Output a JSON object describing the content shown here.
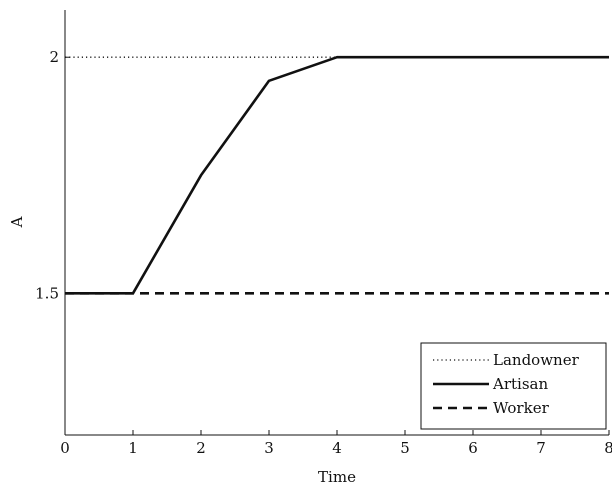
{
  "chart_data": {
    "type": "line",
    "xlabel": "Time",
    "ylabel": "A",
    "xlim": [
      0,
      8
    ],
    "ylim": [
      1.2,
      2.1
    ],
    "xticks": [
      "0",
      "1",
      "2",
      "3",
      "4",
      "5",
      "6",
      "7",
      "8"
    ],
    "yticks": [
      "1.5",
      "2"
    ],
    "grid": false,
    "legend_position": "bottom-right",
    "series": [
      {
        "name": "Landowner",
        "line_style": "dotted",
        "x": [
          0,
          8
        ],
        "y": [
          2,
          2
        ]
      },
      {
        "name": "Artisan",
        "line_style": "solid",
        "x": [
          0,
          1,
          2,
          3,
          4,
          8
        ],
        "y": [
          1.5,
          1.5,
          1.75,
          1.95,
          2,
          2
        ]
      },
      {
        "name": "Worker",
        "line_style": "dashed",
        "x": [
          0,
          8
        ],
        "y": [
          1.5,
          1.5
        ]
      }
    ],
    "colors": {
      "line": "#111111",
      "axis": "#111111",
      "background": "#ffffff"
    }
  }
}
